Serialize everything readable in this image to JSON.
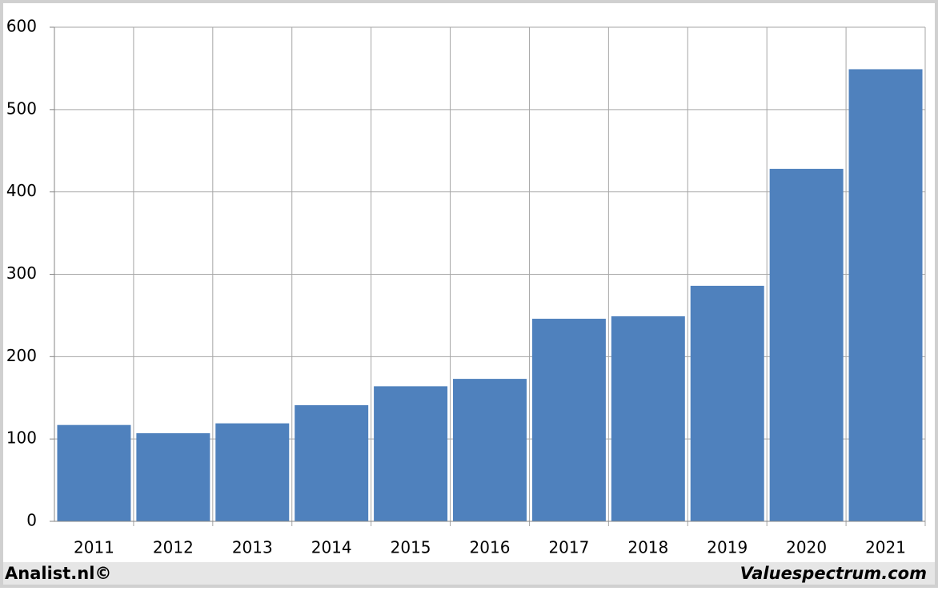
{
  "chart_data": {
    "type": "bar",
    "categories": [
      "2011",
      "2012",
      "2013",
      "2014",
      "2015",
      "2016",
      "2017",
      "2018",
      "2019",
      "2020",
      "2021"
    ],
    "values": [
      117,
      107,
      119,
      141,
      164,
      173,
      246,
      249,
      286,
      428,
      549
    ],
    "color": "#4f81bd",
    "ylim": [
      0,
      600
    ],
    "yticks": [
      0,
      100,
      200,
      300,
      400,
      500,
      600
    ],
    "grid": true,
    "footer_left": "Analist.nl©",
    "footer_right": "Valuespectrum.com"
  }
}
